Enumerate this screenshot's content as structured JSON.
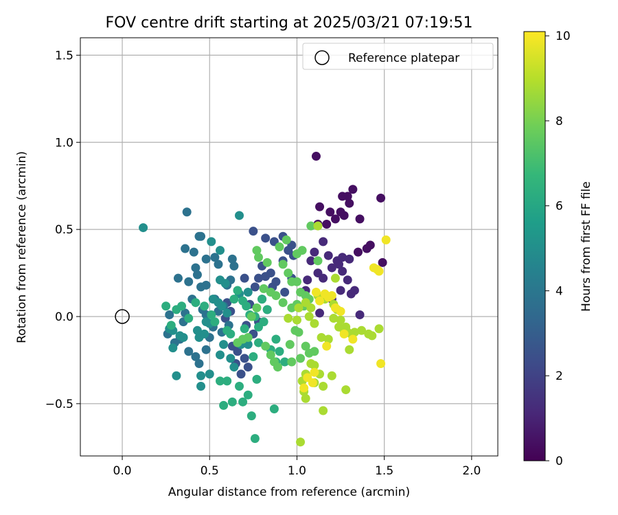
{
  "chart_data": {
    "type": "scatter",
    "title": "FOV centre drift starting at 2025/03/21 07:19:51",
    "xlabel": "Angular distance from reference (arcmin)",
    "ylabel": "Rotation from reference (arcmin)",
    "xlim": [
      -0.24,
      2.15
    ],
    "ylim": [
      -0.8,
      1.6
    ],
    "xticks": [
      0.0,
      0.5,
      1.0,
      1.5,
      2.0
    ],
    "xtick_labels": [
      "0.0",
      "0.5",
      "1.0",
      "1.5",
      "2.0"
    ],
    "yticks": [
      -0.5,
      0.0,
      0.5,
      1.0,
      1.5
    ],
    "ytick_labels": [
      "−0.5",
      "0.0",
      "0.5",
      "1.0",
      "1.5"
    ],
    "grid": true,
    "legend": {
      "position": "top-right",
      "entries": [
        "Reference platepar"
      ]
    },
    "reference_point": {
      "label": "Reference platepar",
      "x": 0.0,
      "y": 0.0
    },
    "colorbar": {
      "label": "Hours from first FF file",
      "range": [
        0,
        10.1
      ],
      "ticks": [
        0,
        2,
        4,
        6,
        8,
        10
      ],
      "tick_labels": [
        "0",
        "2",
        "4",
        "6",
        "8",
        "10"
      ],
      "colormap": "viridis"
    },
    "colormap_stops": [
      "#440154",
      "#482878",
      "#3e4a89",
      "#31688e",
      "#26828e",
      "#1f9e89",
      "#35b779",
      "#6ece58",
      "#b5de2b",
      "#fde725"
    ],
    "point_groups": [
      {
        "hours": 0.4,
        "points": [
          [
            1.13,
            0.63
          ],
          [
            1.17,
            0.53
          ],
          [
            1.19,
            0.6
          ],
          [
            1.22,
            0.56
          ],
          [
            1.26,
            0.69
          ],
          [
            1.27,
            0.58
          ],
          [
            1.3,
            0.65
          ],
          [
            1.32,
            0.73
          ],
          [
            1.29,
            0.69
          ],
          [
            1.36,
            0.56
          ],
          [
            1.4,
            0.39
          ],
          [
            1.42,
            0.41
          ],
          [
            1.48,
            0.68
          ],
          [
            1.49,
            0.31
          ],
          [
            1.12,
            0.53
          ],
          [
            1.25,
            0.6
          ],
          [
            1.35,
            0.37
          ],
          [
            1.11,
            0.92
          ]
        ]
      },
      {
        "hours": 1.2,
        "points": [
          [
            1.1,
            0.37
          ],
          [
            1.15,
            0.43
          ],
          [
            1.18,
            0.35
          ],
          [
            1.23,
            0.32
          ],
          [
            1.26,
            0.26
          ],
          [
            1.29,
            0.21
          ],
          [
            1.31,
            0.13
          ],
          [
            1.33,
            0.15
          ],
          [
            1.36,
            0.01
          ],
          [
            1.12,
            0.25
          ],
          [
            1.08,
            0.32
          ],
          [
            1.06,
            0.21
          ],
          [
            1.05,
            0.15
          ],
          [
            1.15,
            0.22
          ],
          [
            1.2,
            0.28
          ],
          [
            1.24,
            0.3
          ],
          [
            1.26,
            0.34
          ],
          [
            1.3,
            0.33
          ],
          [
            1.13,
            0.02
          ],
          [
            1.2,
            0.1
          ],
          [
            1.25,
            0.15
          ]
        ]
      },
      {
        "hours": 2.5,
        "points": [
          [
            0.75,
            0.49
          ],
          [
            0.82,
            0.45
          ],
          [
            0.87,
            0.43
          ],
          [
            0.92,
            0.46
          ],
          [
            0.95,
            0.38
          ],
          [
            0.97,
            0.41
          ],
          [
            0.92,
            0.32
          ],
          [
            0.85,
            0.25
          ],
          [
            0.82,
            0.23
          ],
          [
            0.78,
            0.22
          ],
          [
            0.8,
            0.29
          ],
          [
            0.88,
            0.2
          ],
          [
            0.93,
            0.14
          ],
          [
            0.97,
            0.22
          ],
          [
            0.86,
            0.17
          ],
          [
            0.98,
            0.35
          ],
          [
            0.73,
            0.07
          ],
          [
            0.7,
            0.22
          ],
          [
            0.76,
            0.17
          ],
          [
            0.8,
            0.1
          ],
          [
            0.83,
            0.04
          ],
          [
            0.78,
            -0.03
          ],
          [
            0.75,
            -0.1
          ],
          [
            0.72,
            -0.29
          ],
          [
            0.68,
            -0.33
          ],
          [
            0.62,
            0.03
          ],
          [
            0.6,
            0.08
          ],
          [
            0.59,
            -0.01
          ],
          [
            0.63,
            -0.17
          ],
          [
            0.65,
            -0.27
          ],
          [
            0.66,
            -0.2
          ],
          [
            0.7,
            -0.24
          ],
          [
            0.71,
            -0.05
          ]
        ]
      },
      {
        "hours": 3.8,
        "points": [
          [
            0.37,
            0.6
          ],
          [
            0.45,
            0.46
          ],
          [
            0.44,
            0.46
          ],
          [
            0.41,
            0.37
          ],
          [
            0.48,
            0.33
          ],
          [
            0.53,
            0.34
          ],
          [
            0.36,
            0.39
          ],
          [
            0.42,
            0.28
          ],
          [
            0.45,
            0.17
          ],
          [
            0.48,
            0.18
          ],
          [
            0.38,
            0.2
          ],
          [
            0.32,
            0.22
          ],
          [
            0.43,
            0.24
          ],
          [
            0.4,
            0.1
          ],
          [
            0.46,
            0.04
          ],
          [
            0.36,
            0.02
          ],
          [
            0.35,
            -0.03
          ],
          [
            0.27,
            0.01
          ],
          [
            0.26,
            -0.1
          ],
          [
            0.33,
            -0.13
          ],
          [
            0.3,
            -0.15
          ],
          [
            0.38,
            -0.2
          ],
          [
            0.42,
            -0.23
          ],
          [
            0.44,
            -0.27
          ],
          [
            0.48,
            -0.19
          ],
          [
            0.5,
            -0.12
          ],
          [
            0.52,
            -0.06
          ],
          [
            0.55,
            0.03
          ],
          [
            0.58,
            0.06
          ],
          [
            0.61,
            -0.05
          ],
          [
            0.57,
            -0.09
          ],
          [
            0.48,
            0.01
          ],
          [
            0.53,
            0.1
          ],
          [
            0.6,
            0.18
          ],
          [
            0.62,
            0.21
          ],
          [
            0.64,
            0.29
          ],
          [
            0.55,
            0.3
          ],
          [
            0.63,
            0.33
          ]
        ]
      },
      {
        "hours": 5.0,
        "points": [
          [
            0.12,
            0.51
          ],
          [
            0.67,
            0.58
          ],
          [
            0.51,
            0.43
          ],
          [
            0.56,
            0.38
          ],
          [
            0.56,
            0.21
          ],
          [
            0.59,
            0.19
          ],
          [
            0.52,
            0.1
          ],
          [
            0.55,
            0.08
          ],
          [
            0.57,
            0.06
          ],
          [
            0.6,
            0.02
          ],
          [
            0.44,
            -0.12
          ],
          [
            0.47,
            -0.1
          ],
          [
            0.43,
            -0.08
          ],
          [
            0.48,
            -0.03
          ],
          [
            0.5,
            -0.04
          ],
          [
            0.29,
            -0.08
          ],
          [
            0.27,
            -0.07
          ],
          [
            0.33,
            -0.11
          ],
          [
            0.35,
            -0.12
          ],
          [
            0.31,
            -0.34
          ],
          [
            0.45,
            -0.34
          ],
          [
            0.45,
            -0.4
          ],
          [
            0.5,
            -0.33
          ],
          [
            0.56,
            -0.22
          ],
          [
            0.58,
            -0.16
          ],
          [
            0.62,
            -0.24
          ],
          [
            0.64,
            -0.29
          ],
          [
            0.68,
            -0.16
          ],
          [
            0.72,
            -0.16
          ],
          [
            0.67,
            0.13
          ],
          [
            0.72,
            0.14
          ],
          [
            0.29,
            -0.18
          ]
        ]
      },
      {
        "hours": 6.3,
        "points": [
          [
            0.25,
            0.06
          ],
          [
            0.31,
            0.04
          ],
          [
            0.34,
            0.06
          ],
          [
            0.42,
            0.08
          ],
          [
            0.47,
            0.06
          ],
          [
            0.51,
            0.01
          ],
          [
            0.53,
            -0.03
          ],
          [
            0.38,
            -0.01
          ],
          [
            0.28,
            -0.05
          ],
          [
            0.64,
            0.1
          ],
          [
            0.69,
            0.09
          ],
          [
            0.66,
            0.15
          ],
          [
            0.71,
            0.06
          ],
          [
            0.6,
            -0.08
          ],
          [
            0.62,
            -0.1
          ],
          [
            0.7,
            -0.07
          ],
          [
            0.73,
            0.01
          ],
          [
            0.76,
            0.0
          ],
          [
            0.78,
            -0.15
          ],
          [
            0.75,
            -0.23
          ],
          [
            0.77,
            -0.36
          ],
          [
            0.72,
            -0.45
          ],
          [
            0.69,
            -0.49
          ],
          [
            0.63,
            -0.49
          ],
          [
            0.58,
            -0.51
          ],
          [
            0.56,
            -0.37
          ],
          [
            0.6,
            -0.37
          ],
          [
            0.67,
            -0.4
          ],
          [
            0.74,
            -0.57
          ],
          [
            0.76,
            -0.7
          ],
          [
            0.87,
            -0.53
          ],
          [
            0.88,
            -0.26
          ],
          [
            0.85,
            -0.19
          ],
          [
            0.88,
            -0.13
          ],
          [
            0.9,
            -0.2
          ],
          [
            0.93,
            -0.26
          ],
          [
            0.81,
            -0.03
          ],
          [
            0.78,
            -0.06
          ],
          [
            0.83,
            0.04
          ],
          [
            0.8,
            0.1
          ]
        ]
      },
      {
        "hours": 7.6,
        "points": [
          [
            0.77,
            0.38
          ],
          [
            0.78,
            0.34
          ],
          [
            0.83,
            0.31
          ],
          [
            0.9,
            0.4
          ],
          [
            0.94,
            0.44
          ],
          [
            0.92,
            0.3
          ],
          [
            0.95,
            0.25
          ],
          [
            0.97,
            0.2
          ],
          [
            1.0,
            0.2
          ],
          [
            1.02,
            0.14
          ],
          [
            1.05,
            0.12
          ],
          [
            1.07,
            0.1
          ],
          [
            1.04,
            0.06
          ],
          [
            1.0,
            0.07
          ],
          [
            0.97,
            0.05
          ],
          [
            0.92,
            0.08
          ],
          [
            0.88,
            0.12
          ],
          [
            0.85,
            0.14
          ],
          [
            0.81,
            0.16
          ],
          [
            0.77,
            0.05
          ],
          [
            0.74,
            0.0
          ],
          [
            0.72,
            -0.12
          ],
          [
            0.69,
            -0.13
          ],
          [
            0.66,
            -0.15
          ],
          [
            0.82,
            -0.17
          ],
          [
            0.85,
            -0.22
          ],
          [
            0.87,
            -0.26
          ],
          [
            0.89,
            -0.29
          ],
          [
            0.97,
            -0.26
          ],
          [
            1.02,
            -0.24
          ],
          [
            1.05,
            -0.17
          ],
          [
            1.07,
            -0.21
          ],
          [
            1.1,
            -0.2
          ],
          [
            1.03,
            0.38
          ],
          [
            1.0,
            0.36
          ],
          [
            1.08,
            0.52
          ],
          [
            1.12,
            0.32
          ],
          [
            0.96,
            -0.16
          ],
          [
            0.99,
            -0.08
          ],
          [
            1.01,
            -0.09
          ]
        ]
      },
      {
        "hours": 8.8,
        "points": [
          [
            1.12,
            0.12
          ],
          [
            1.16,
            0.1
          ],
          [
            1.21,
            0.07
          ],
          [
            1.23,
            0.04
          ],
          [
            1.25,
            -0.02
          ],
          [
            1.28,
            -0.06
          ],
          [
            1.31,
            -0.1
          ],
          [
            1.33,
            -0.09
          ],
          [
            1.37,
            -0.08
          ],
          [
            1.41,
            -0.1
          ],
          [
            1.43,
            -0.11
          ],
          [
            1.47,
            -0.07
          ],
          [
            1.08,
            -0.27
          ],
          [
            1.1,
            -0.28
          ],
          [
            1.13,
            -0.33
          ],
          [
            1.05,
            -0.33
          ],
          [
            1.03,
            -0.37
          ],
          [
            1.04,
            -0.43
          ],
          [
            1.05,
            -0.47
          ],
          [
            1.1,
            -0.38
          ],
          [
            1.15,
            -0.4
          ],
          [
            1.15,
            -0.54
          ],
          [
            1.2,
            -0.34
          ],
          [
            1.28,
            -0.42
          ],
          [
            1.3,
            -0.19
          ],
          [
            1.02,
            -0.72
          ],
          [
            1.07,
            0.0
          ],
          [
            1.1,
            -0.04
          ],
          [
            1.14,
            -0.12
          ],
          [
            1.18,
            -0.13
          ],
          [
            1.21,
            -0.01
          ],
          [
            1.24,
            -0.06
          ],
          [
            1.27,
            -0.08
          ],
          [
            1.29,
            -0.09
          ],
          [
            1.01,
            0.05
          ],
          [
            0.95,
            -0.01
          ],
          [
            1.0,
            -0.02
          ],
          [
            1.05,
            0.08
          ],
          [
            1.08,
            0.05
          ],
          [
            1.12,
            0.52
          ],
          [
            1.22,
            0.22
          ]
        ]
      },
      {
        "hours": 9.9,
        "points": [
          [
            1.51,
            0.44
          ],
          [
            1.46,
            0.27
          ],
          [
            1.47,
            0.26
          ],
          [
            1.48,
            -0.27
          ],
          [
            1.44,
            0.28
          ],
          [
            1.32,
            -0.13
          ],
          [
            1.27,
            -0.1
          ],
          [
            1.25,
            0.03
          ],
          [
            1.22,
            0.05
          ],
          [
            1.16,
            0.13
          ],
          [
            1.18,
            0.11
          ],
          [
            1.2,
            0.12
          ],
          [
            1.13,
            0.09
          ],
          [
            1.11,
            0.14
          ],
          [
            1.17,
            -0.17
          ],
          [
            1.1,
            -0.32
          ],
          [
            1.06,
            -0.35
          ],
          [
            1.09,
            -0.38
          ],
          [
            1.04,
            -0.41
          ]
        ]
      }
    ]
  }
}
